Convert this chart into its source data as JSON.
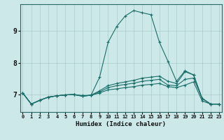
{
  "title": "",
  "xlabel": "Humidex (Indice chaleur)",
  "bg_color": "#cce8e8",
  "line_color": "#1a6e6a",
  "grid_color_major": "#aacccc",
  "grid_color_minor": "#c4dddd",
  "xtick_labels": [
    "0",
    "1",
    "2",
    "3",
    "4",
    "5",
    "6",
    "7",
    "8",
    "9",
    "10",
    "11",
    "12",
    "13",
    "14",
    "15",
    "16",
    "17",
    "18",
    "19",
    "20",
    "21",
    "22",
    "23"
  ],
  "ytick_values": [
    7,
    8,
    9
  ],
  "ytick_labels": [
    "7",
    "8",
    "9"
  ],
  "ylim": [
    6.45,
    9.85
  ],
  "xlim": [
    -0.3,
    23.3
  ],
  "line1": [
    7.05,
    6.7,
    6.82,
    6.92,
    6.96,
    6.99,
    7.0,
    6.97,
    6.98,
    7.55,
    8.65,
    9.15,
    9.48,
    9.65,
    9.58,
    9.52,
    8.65,
    8.05,
    7.42,
    7.75,
    7.62,
    6.88,
    6.7,
    6.7
  ],
  "line2": [
    7.05,
    6.7,
    6.82,
    6.92,
    6.96,
    6.99,
    7.0,
    6.95,
    6.98,
    7.12,
    7.28,
    7.35,
    7.4,
    7.45,
    7.52,
    7.55,
    7.58,
    7.42,
    7.35,
    7.72,
    7.62,
    6.88,
    6.7,
    6.7
  ],
  "line3": [
    7.05,
    6.7,
    6.82,
    6.92,
    6.96,
    6.99,
    7.0,
    6.95,
    6.98,
    7.08,
    7.22,
    7.28,
    7.32,
    7.36,
    7.42,
    7.45,
    7.48,
    7.3,
    7.28,
    7.48,
    7.52,
    6.88,
    6.7,
    6.7
  ],
  "line4": [
    7.05,
    6.7,
    6.82,
    6.92,
    6.96,
    6.99,
    7.0,
    6.95,
    6.98,
    7.05,
    7.15,
    7.18,
    7.22,
    7.25,
    7.3,
    7.32,
    7.35,
    7.25,
    7.22,
    7.3,
    7.4,
    6.8,
    6.7,
    6.7
  ]
}
